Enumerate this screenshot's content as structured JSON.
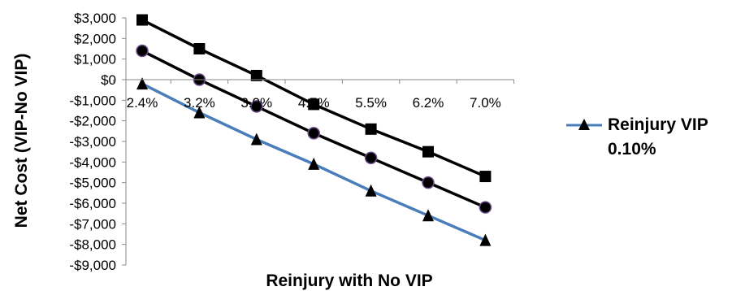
{
  "chart_data": {
    "type": "line",
    "categories": [
      "2.4%",
      "3.2%",
      "3.9%",
      "4.7%",
      "5.5%",
      "6.2%",
      "7.0%"
    ],
    "xlabel": "Reinjury with No VIP",
    "ylabel": "Net Cost (VIP-No VIP)",
    "ylim": [
      -9000,
      3000
    ],
    "yticks": [
      3000,
      2000,
      1000,
      0,
      -1000,
      -2000,
      -3000,
      -4000,
      -5000,
      -6000,
      -7000,
      -8000,
      -9000
    ],
    "ytick_labels": [
      "$3,000",
      "$2,000",
      "$1,000",
      "$0",
      "-$1,000",
      "-$2,000",
      "-$3,000",
      "-$4,000",
      "-$5,000",
      "-$6,000",
      "-$7,000",
      "-$8,000",
      "-$9,000"
    ],
    "grid": false,
    "legend_position": "right",
    "series": [
      {
        "name": "",
        "marker": "square",
        "color": "#000000",
        "values": [
          2900,
          1500,
          200,
          -1200,
          -2400,
          -3500,
          -4700
        ]
      },
      {
        "name": "",
        "marker": "circle",
        "color": "#000000",
        "values": [
          1400,
          0,
          -1300,
          -2600,
          -3800,
          -5000,
          -6200
        ]
      },
      {
        "name": "Reinjury VIP 0.10%",
        "marker": "triangle",
        "color": "#4a7ebb",
        "values": [
          -200,
          -1600,
          -2900,
          -4100,
          -5400,
          -6600,
          -7800
        ]
      }
    ],
    "legend": {
      "line1": "Reinjury VIP",
      "line2": "0.10%"
    }
  }
}
